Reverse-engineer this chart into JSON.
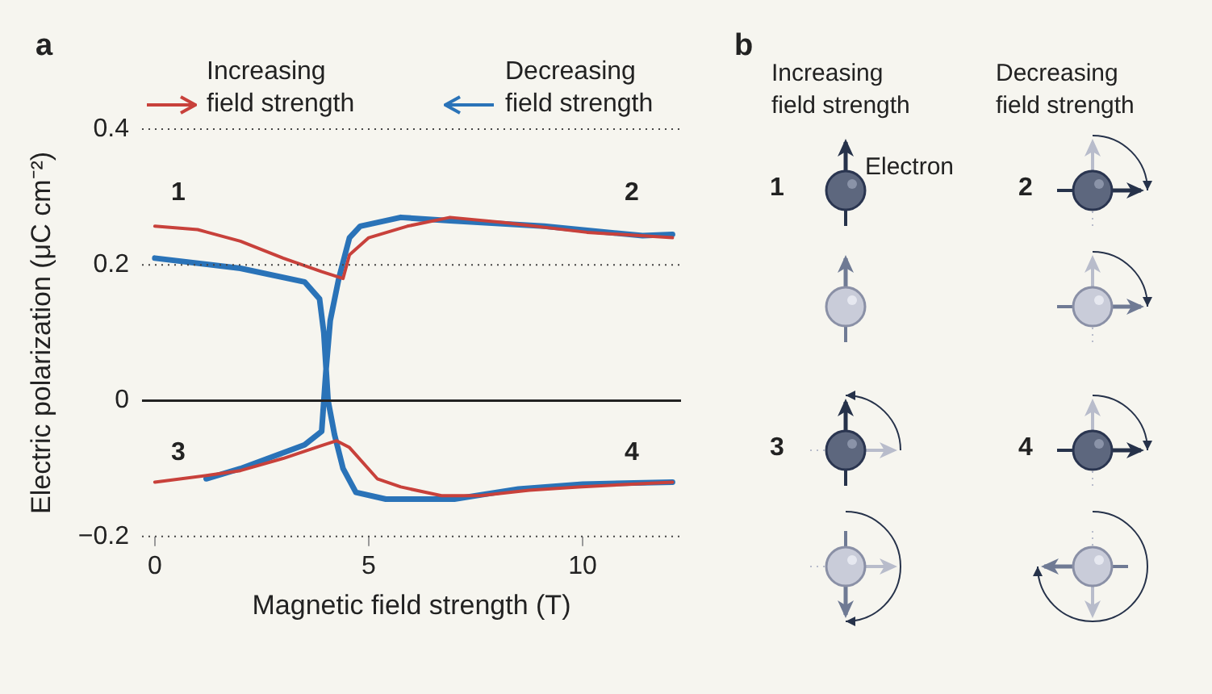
{
  "chart_data": [
    {
      "type": "line",
      "xlabel": "Magnetic field strength (T)",
      "ylabel": "Electric polarization (μC cm⁻²)",
      "xlim": [
        -0.3,
        12.3
      ],
      "xticks": [
        0,
        5,
        10
      ],
      "ylim": [
        -0.2,
        0.4
      ],
      "yticks": [
        {
          "value": -0.2,
          "label": "−0.2"
        },
        0,
        0.2,
        0.4
      ],
      "legend": "top",
      "ref_lines": [
        {
          "axis": "y",
          "value": 0.4,
          "color": "#444444",
          "line_style": "dotted"
        },
        {
          "axis": "y",
          "value": 0.2,
          "color": "#444444",
          "line_style": "dotted"
        },
        {
          "axis": "y",
          "value": 0,
          "color": "#222222"
        },
        {
          "axis": "y",
          "value": -0.2,
          "color": "#444444",
          "line_style": "dotted"
        }
      ],
      "annotations": [
        "a",
        "1",
        "2",
        "3",
        "4"
      ],
      "series": [
        {
          "name": "Increasing field strength",
          "color": "#c8413b",
          "x": [
            0,
            1,
            2,
            3,
            3.9,
            4.4,
            4.55,
            5,
            5.9,
            6.9,
            8.2,
            10.1,
            12.1,
            null,
            0,
            1.24,
            2,
            3,
            3.9,
            4.25,
            4.55,
            5.2,
            5.75,
            6.7,
            7.6,
            8.75,
            9.9,
            12.1
          ],
          "values": [
            0.257,
            0.252,
            0.235,
            0.21,
            0.19,
            0.18,
            0.215,
            0.24,
            0.257,
            0.27,
            0.262,
            0.248,
            0.24,
            null,
            -0.12,
            -0.11,
            -0.103,
            -0.085,
            -0.066,
            -0.059,
            -0.069,
            -0.115,
            -0.127,
            -0.14,
            -0.14,
            -0.132,
            -0.127,
            -0.12
          ]
        },
        {
          "name": "Decreasing field strength",
          "color": "#2a73b8",
          "x": [
            12.1,
            11.4,
            9.1,
            6.9,
            5.75,
            4.8,
            4.55,
            4.3,
            4.1,
            4.0,
            3.9,
            3.5,
            2,
            1.2,
            null,
            12.1,
            10,
            8.5,
            7,
            5.4,
            4.7,
            4.4,
            4.2,
            4.05,
            3.95,
            3.85,
            3.5,
            2,
            0
          ],
          "values": [
            0.245,
            0.243,
            0.257,
            0.265,
            0.27,
            0.257,
            0.24,
            0.18,
            0.118,
            0.044,
            -0.045,
            -0.065,
            -0.1,
            -0.115,
            null,
            -0.12,
            -0.123,
            -0.13,
            -0.145,
            -0.145,
            -0.135,
            -0.1,
            -0.05,
            0,
            0.1,
            0.15,
            0.175,
            0.195,
            0.21
          ]
        }
      ]
    },
    {
      "type": "other",
      "annotations": [
        "b",
        "Increasing field strength",
        "Decreasing field strength",
        "Electron",
        "1",
        "2",
        "3",
        "4"
      ]
    }
  ]
}
